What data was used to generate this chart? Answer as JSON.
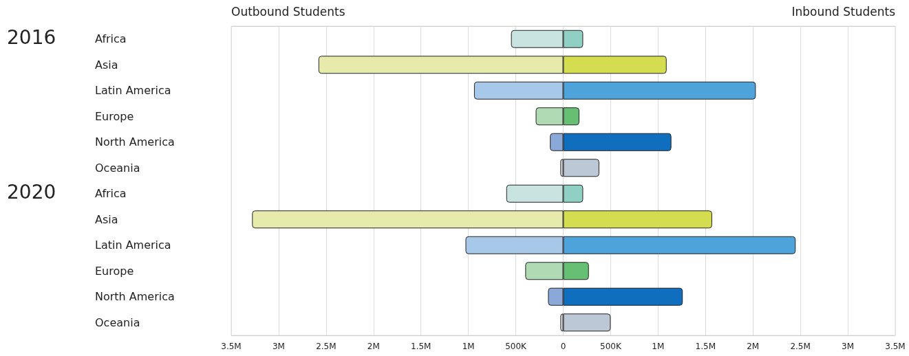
{
  "chart_data": {
    "type": "bar",
    "orientation": "horizontal",
    "stacked": true,
    "categories": [
      "Africa",
      "Asia",
      "Latin America",
      "Europe",
      "North America",
      "Oceania",
      "Africa",
      "Asia",
      "Latin America",
      "Europe",
      "North America",
      "Oceania"
    ],
    "series": [
      {
        "values": [
          -550000,
          -2580000,
          -940000,
          -290000,
          -140000,
          -30000,
          -600000,
          -3280000,
          -1030000,
          -400000,
          -160000,
          -30000
        ],
        "colors": [
          "#c8e3e0",
          "#e6eaaa",
          "#a8c8ea",
          "#b0dab4",
          "#8aa8d8",
          "#dfe3ea",
          "#c8e3e0",
          "#e6eaaa",
          "#a8c8ea",
          "#b0dab4",
          "#8aa8d8",
          "#dfe3ea"
        ]
      },
      {
        "values": [
          210000,
          1090000,
          2030000,
          170000,
          1140000,
          380000,
          210000,
          1570000,
          2450000,
          270000,
          1260000,
          500000
        ],
        "colors": [
          "#8fcfc4",
          "#d4dc50",
          "#4fa3db",
          "#67bf73",
          "#0f6fbe",
          "#bcc8d6",
          "#8fcfc4",
          "#d4dc50",
          "#4fa3db",
          "#67bf73",
          "#0f6fbe",
          "#bcc8d6"
        ]
      }
    ],
    "xlim": [
      -3500000,
      3500000
    ],
    "xticks": [
      {
        "value": -3500000,
        "label": "3.5M"
      },
      {
        "value": -3000000,
        "label": "3M"
      },
      {
        "value": -2500000,
        "label": "2.5M"
      },
      {
        "value": -2000000,
        "label": "2M"
      },
      {
        "value": -1500000,
        "label": "1.5M"
      },
      {
        "value": -1000000,
        "label": "1M"
      },
      {
        "value": -500000,
        "label": "500K"
      },
      {
        "value": 0,
        "label": "0"
      },
      {
        "value": 500000,
        "label": "500K"
      },
      {
        "value": 1000000,
        "label": "1M"
      },
      {
        "value": 1500000,
        "label": "1.5M"
      },
      {
        "value": 2000000,
        "label": "2M"
      },
      {
        "value": 2500000,
        "label": "2.5M"
      },
      {
        "value": 3000000,
        "label": "3M"
      },
      {
        "value": 3500000,
        "label": "3.5M"
      }
    ],
    "grid": "x",
    "annotations": [
      "Outbound Students",
      "Inbound Students",
      "2016",
      "2020"
    ]
  }
}
